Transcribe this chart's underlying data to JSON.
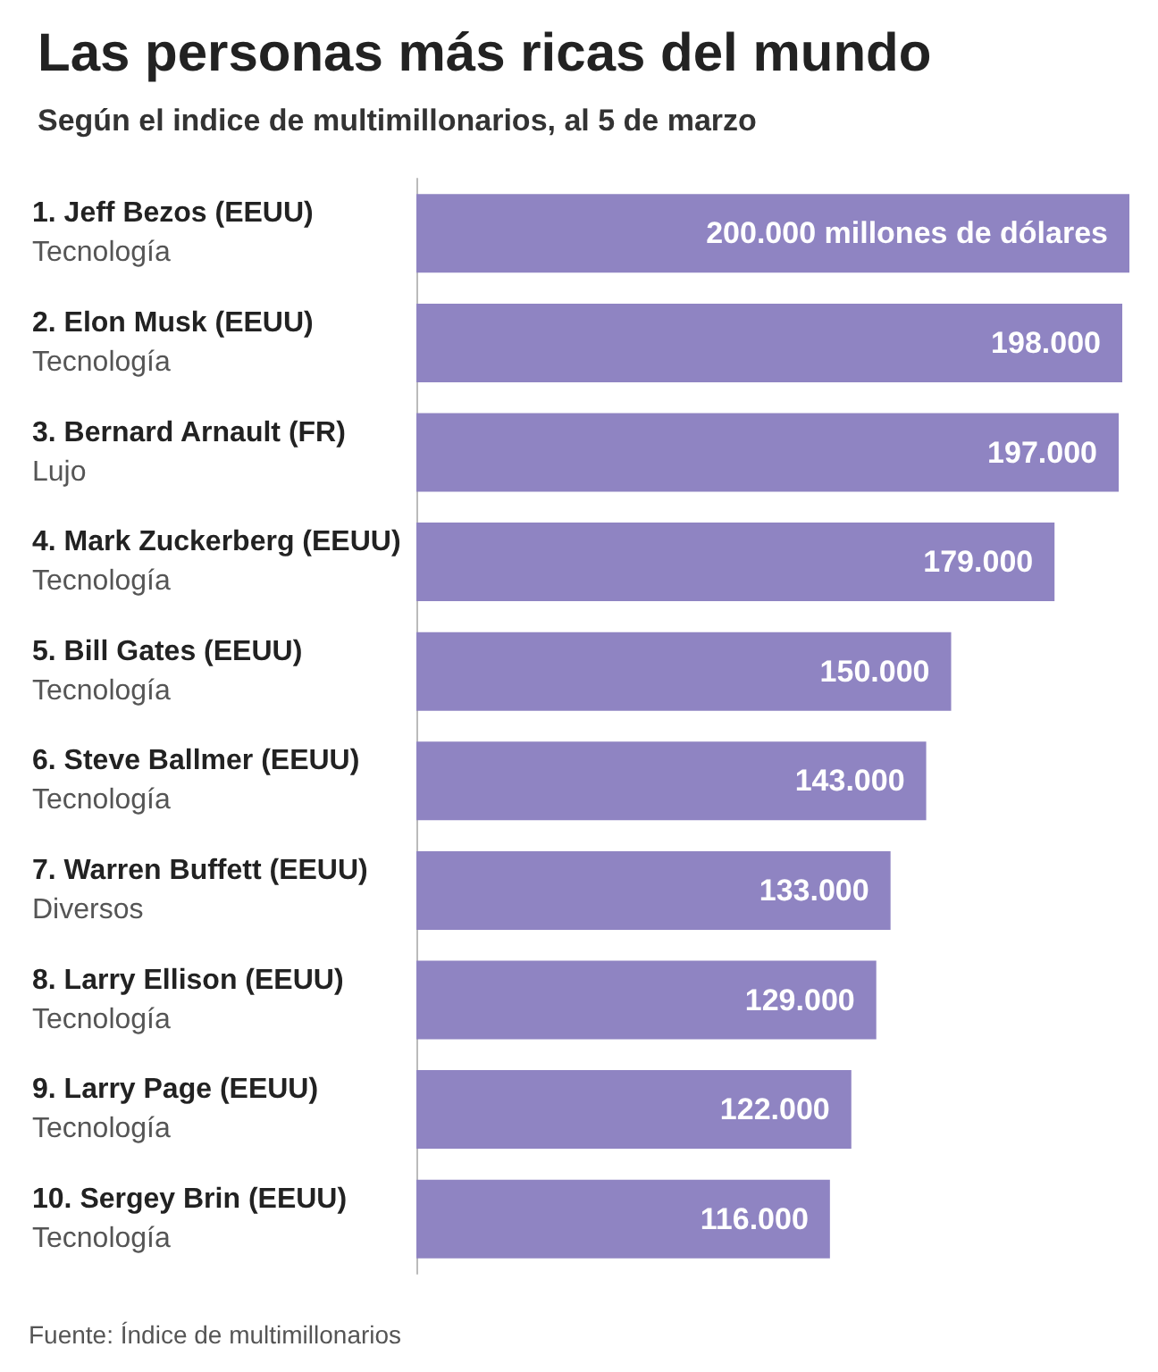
{
  "chart_data": {
    "type": "bar",
    "orientation": "horizontal",
    "title": "Las personas más ricas del mundo",
    "subtitle": "Según el indice de multimillonarios, al 5 de marzo",
    "categories": [
      "1. Jeff Bezos (EEUU)\nTecnología",
      "2. Elon Musk (EEUU)\nTecnología",
      "3. Bernard Arnault (FR)\nLujo",
      "4. Mark Zuckerberg (EEUU)\nTecnología",
      "5. Bill Gates (EEUU)\nTecnología",
      "6. Steve Ballmer (EEUU)\nTecnología",
      "7. Warren Buffett (EEUU)\nDiversos",
      "8. Larry Ellison (EEUU)\nTecnología",
      "9. Larry Page (EEUU)\nTecnología",
      "10. Sergey Brin (EEUU)\nTecnología"
    ],
    "values": [
      200000,
      198000,
      197000,
      179000,
      150000,
      143000,
      133000,
      129000,
      122000,
      116000
    ],
    "value_labels": [
      "200.000 millones de dólares",
      "198.000",
      "197.000",
      "179.000",
      "150.000",
      "143.000",
      "133.000",
      "129.000",
      "122.000",
      "116.000"
    ],
    "color": "#8f84c2",
    "annotations": [
      "Fuente: Índice de multimillonarios"
    ]
  }
}
